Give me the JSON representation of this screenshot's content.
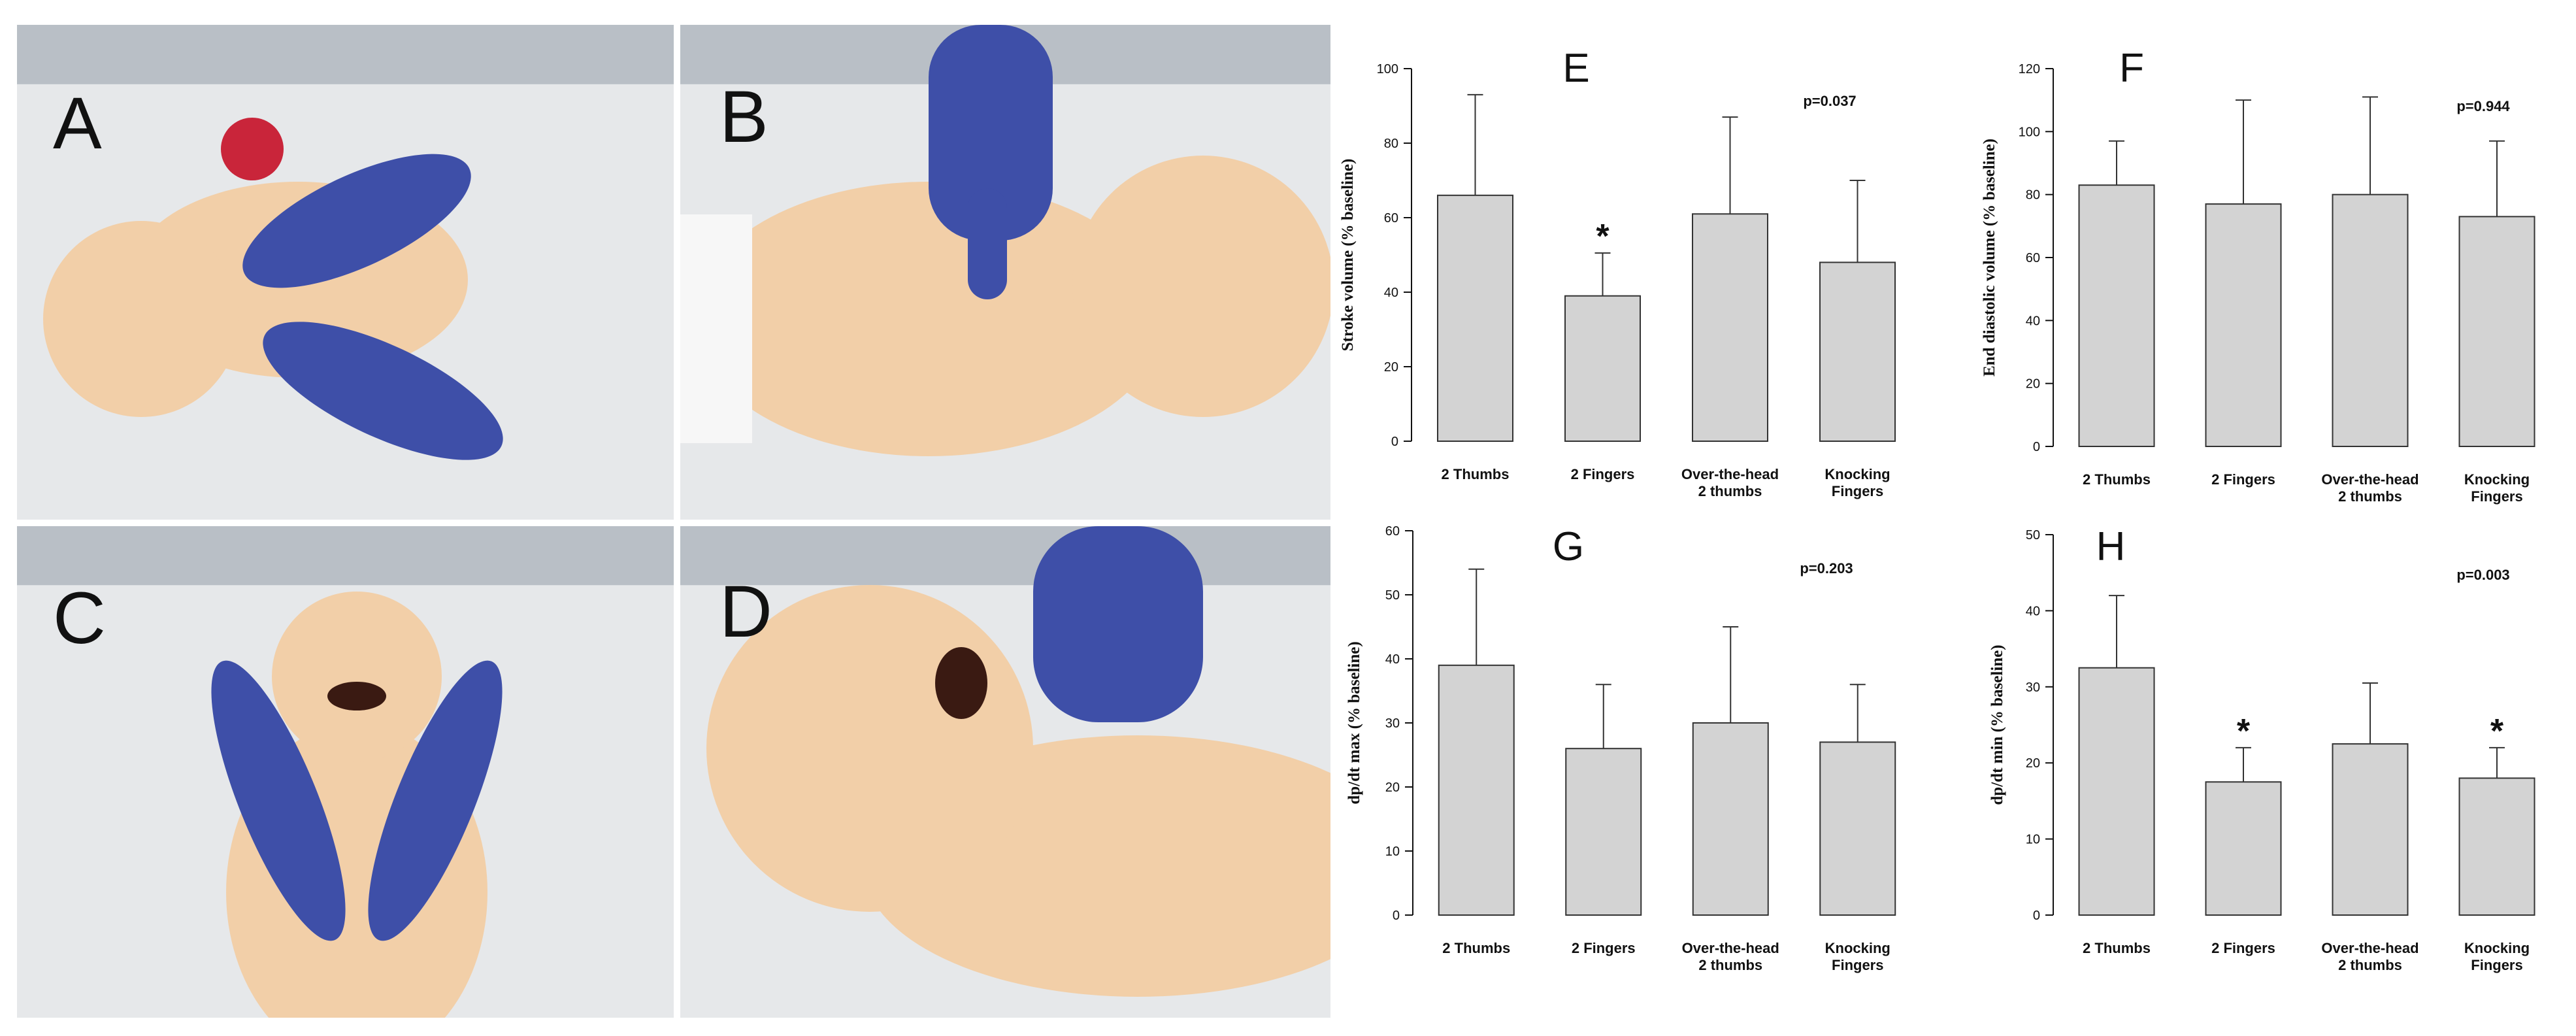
{
  "photos": [
    {
      "letter": "A",
      "subject": "infant manikin, two-thumb chest compression, top view"
    },
    {
      "letter": "B",
      "subject": "infant manikin, two-finger chest compression, side view"
    },
    {
      "letter": "C",
      "subject": "infant manikin, over-the-head two-thumb compression"
    },
    {
      "letter": "D",
      "subject": "infant manikin, knocking-fingers compression, close-up"
    }
  ],
  "colors": {
    "bar_fill": "#d3d3d3",
    "bar_stroke": "#333333",
    "glove": "#3e4fa8",
    "skin": "#f2cfa8",
    "bed": "#e6e8ea"
  },
  "chart_data": [
    {
      "panel": "E",
      "type": "bar",
      "categories": [
        "2 Thumbs",
        "2 Fingers",
        "Over-the-head\n2 thumbs",
        "Knocking\nFingers"
      ],
      "values": [
        66,
        39,
        61,
        48
      ],
      "errors": [
        27,
        11.5,
        26,
        22
      ],
      "ylabel": "Stroke volume (% baseline)",
      "ylim": [
        0,
        100
      ],
      "yticks": [
        0,
        20,
        40,
        60,
        80,
        100
      ],
      "p_value": "p=0.037",
      "significant": [
        false,
        true,
        false,
        false
      ]
    },
    {
      "panel": "F",
      "type": "bar",
      "categories": [
        "2 Thumbs",
        "2 Fingers",
        "Over-the-head\n2 thumbs",
        "Knocking\nFingers"
      ],
      "values": [
        83,
        77,
        80,
        73
      ],
      "errors": [
        14,
        33,
        31,
        24
      ],
      "ylabel": "End diastolic volume (% baseline)",
      "ylim": [
        0,
        120
      ],
      "yticks": [
        0,
        20,
        40,
        60,
        80,
        100,
        120
      ],
      "p_value": "p=0.944",
      "significant": [
        false,
        false,
        false,
        false
      ]
    },
    {
      "panel": "G",
      "type": "bar",
      "categories": [
        "2 Thumbs",
        "2 Fingers",
        "Over-the-head\n2 thumbs",
        "Knocking\nFingers"
      ],
      "values": [
        39,
        26,
        30,
        27
      ],
      "errors": [
        15,
        10,
        15,
        9
      ],
      "ylabel": "dp/dt max (% baseline)",
      "ylim": [
        0,
        60
      ],
      "yticks": [
        0,
        10,
        20,
        30,
        40,
        50,
        60
      ],
      "p_value": "p=0.203",
      "significant": [
        false,
        false,
        false,
        false
      ]
    },
    {
      "panel": "H",
      "type": "bar",
      "categories": [
        "2 Thumbs",
        "2 Fingers",
        "Over-the-head\n2 thumbs",
        "Knocking\nFingers"
      ],
      "values": [
        32.5,
        17.5,
        22.5,
        18
      ],
      "errors": [
        9.5,
        4.5,
        8,
        4
      ],
      "ylabel": "dp/dt min (% baseline)",
      "ylim": [
        0,
        50
      ],
      "yticks": [
        0,
        10,
        20,
        30,
        40,
        50
      ],
      "p_value": "p=0.003",
      "significant": [
        false,
        true,
        false,
        true
      ]
    }
  ]
}
